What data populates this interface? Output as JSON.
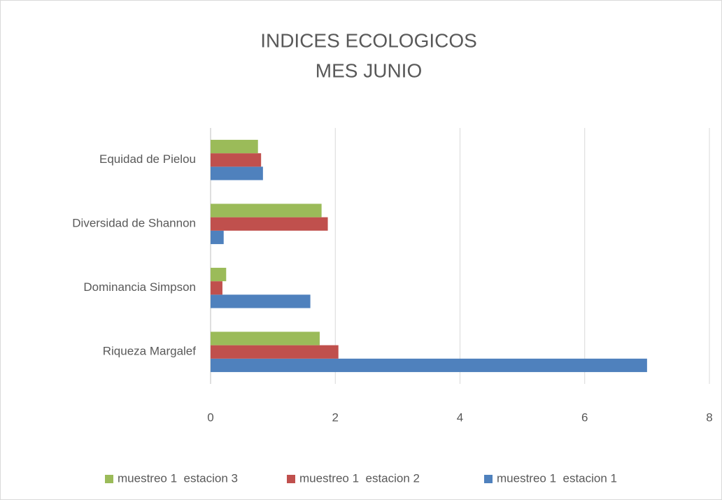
{
  "chart_data": {
    "type": "bar",
    "orientation": "horizontal",
    "title": [
      "INDICES ECOLOGICOS",
      "MES JUNIO"
    ],
    "categories": [
      "Riqueza Margalef",
      "Dominancia Simpson",
      "Diversidad de Shannon",
      "Equidad de Pielou"
    ],
    "series": [
      {
        "name": "muestreo 1  estacion 1",
        "color": "#4f81bd",
        "values": [
          7.0,
          1.6,
          0.21,
          0.84
        ]
      },
      {
        "name": "muestreo 1  estacion 2",
        "color": "#c0504d",
        "values": [
          2.05,
          0.19,
          1.88,
          0.81
        ]
      },
      {
        "name": "muestreo 1  estacion 3",
        "color": "#9bbb59",
        "values": [
          1.75,
          0.25,
          1.78,
          0.76
        ]
      }
    ],
    "xlim": [
      0,
      8
    ],
    "xticks": [
      0,
      2,
      4,
      6,
      8
    ],
    "grid": true,
    "legend": "bottom"
  }
}
